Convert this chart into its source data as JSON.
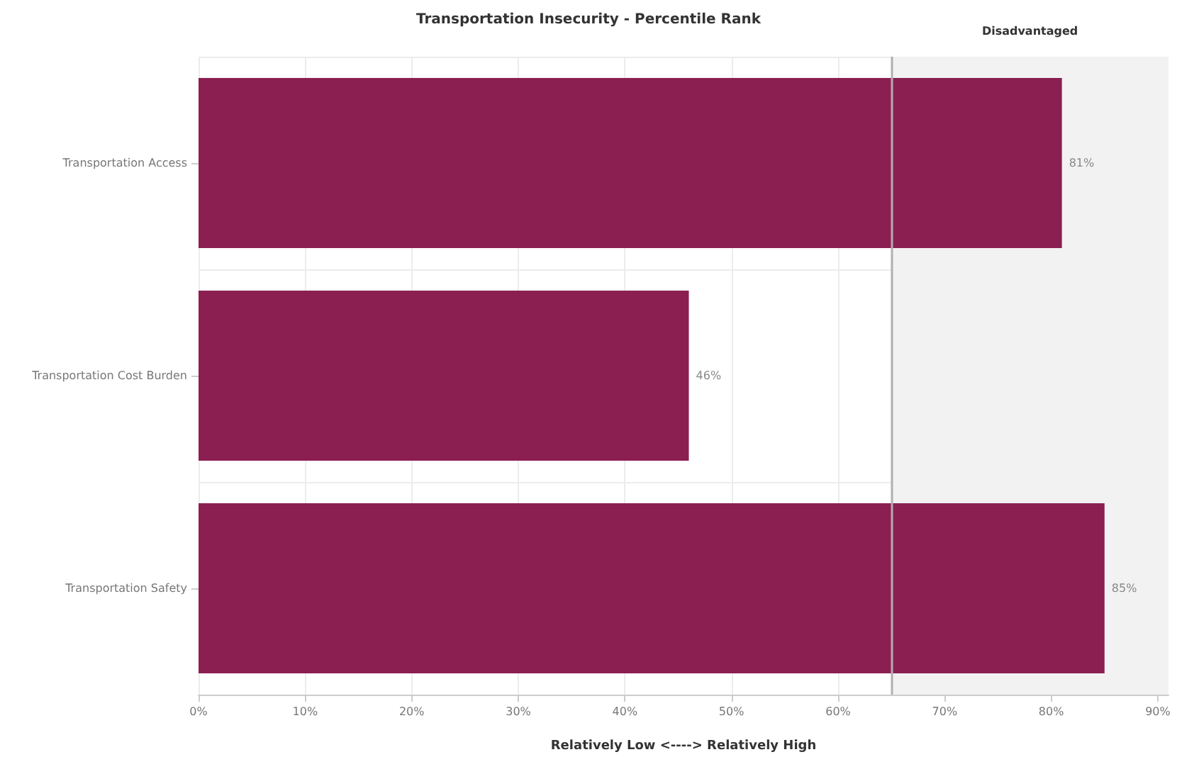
{
  "chart_data": {
    "type": "bar",
    "orientation": "horizontal",
    "title": "Transportation Insecurity - Percentile Rank",
    "xlabel": "Relatively Low <----> Relatively High",
    "categories": [
      "Transportation Access",
      "Transportation Cost Burden",
      "Transportation Safety"
    ],
    "values": [
      81,
      46,
      85
    ],
    "color": "#8b1f52",
    "value_labels": [
      "81%",
      "46%",
      "85%"
    ],
    "xlim": [
      0,
      91
    ],
    "xticks": [
      {
        "value": 0,
        "label": "0%"
      },
      {
        "value": 10,
        "label": "10%"
      },
      {
        "value": 20,
        "label": "20%"
      },
      {
        "value": 30,
        "label": "30%"
      },
      {
        "value": 40,
        "label": "40%"
      },
      {
        "value": 50,
        "label": "50%"
      },
      {
        "value": 60,
        "label": "60%"
      },
      {
        "value": 70,
        "label": "70%"
      },
      {
        "value": 80,
        "label": "80%"
      },
      {
        "value": 90,
        "label": "90%"
      }
    ],
    "ref_lines": [
      {
        "axis": "x",
        "value": 65,
        "color": "#b0b0b0"
      }
    ],
    "bands": [
      {
        "axis": "x",
        "from": 65,
        "to": 91,
        "label": "Disadvantaged",
        "color": "#f2f2f2"
      }
    ],
    "grid": true
  }
}
